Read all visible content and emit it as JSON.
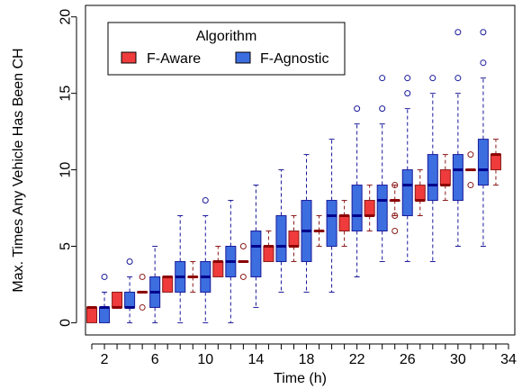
{
  "chart_data": {
    "type": "boxplot",
    "xlabel": "Time (h)",
    "ylabel": "Max. Times Any Vehicle Has Been CH",
    "xlim": [
      0.5,
      34.5
    ],
    "ylim": [
      0,
      20
    ],
    "x_ticks": [
      2,
      6,
      10,
      14,
      18,
      22,
      26,
      30,
      34
    ],
    "y_ticks": [
      0,
      5,
      10,
      15,
      20
    ],
    "legend": {
      "title": "Algorithm",
      "position": "top-left"
    },
    "series": [
      {
        "name": "F-Aware",
        "color": "#ef3b3b",
        "median_color": "#8b0000",
        "whisker_color": "#8b1a1a",
        "boxes": [
          {
            "x": 1,
            "q1": 0,
            "median": 1,
            "q3": 1,
            "lower": 0,
            "upper": 1,
            "outliers": []
          },
          {
            "x": 3,
            "q1": 1,
            "median": 1,
            "q3": 2,
            "lower": 1,
            "upper": 2,
            "outliers": []
          },
          {
            "x": 5,
            "q1": 2,
            "median": 2,
            "q3": 2,
            "lower": 2,
            "upper": 2,
            "outliers": [
              1,
              3
            ]
          },
          {
            "x": 7,
            "q1": 2,
            "median": 3,
            "q3": 3,
            "lower": 2,
            "upper": 3,
            "outliers": []
          },
          {
            "x": 9,
            "q1": 3,
            "median": 3,
            "q3": 3,
            "lower": 2,
            "upper": 4,
            "outliers": []
          },
          {
            "x": 11,
            "q1": 3,
            "median": 4,
            "q3": 4,
            "lower": 3,
            "upper": 5,
            "outliers": []
          },
          {
            "x": 13,
            "q1": 4,
            "median": 4,
            "q3": 4,
            "lower": 4,
            "upper": 4,
            "outliers": [
              3,
              5
            ]
          },
          {
            "x": 15,
            "q1": 4,
            "median": 5,
            "q3": 5,
            "lower": 4,
            "upper": 6,
            "outliers": []
          },
          {
            "x": 17,
            "q1": 5,
            "median": 5,
            "q3": 6,
            "lower": 4,
            "upper": 7,
            "outliers": []
          },
          {
            "x": 19,
            "q1": 6,
            "median": 6,
            "q3": 6,
            "lower": 5,
            "upper": 7,
            "outliers": []
          },
          {
            "x": 21,
            "q1": 6,
            "median": 7,
            "q3": 7,
            "lower": 5,
            "upper": 8,
            "outliers": []
          },
          {
            "x": 23,
            "q1": 7,
            "median": 7,
            "q3": 8,
            "lower": 6,
            "upper": 9,
            "outliers": []
          },
          {
            "x": 25,
            "q1": 8,
            "median": 8,
            "q3": 8,
            "lower": 7,
            "upper": 9,
            "outliers": [
              6,
              7,
              9
            ]
          },
          {
            "x": 27,
            "q1": 8,
            "median": 8,
            "q3": 9,
            "lower": 7,
            "upper": 10,
            "outliers": []
          },
          {
            "x": 29,
            "q1": 9,
            "median": 9,
            "q3": 10,
            "lower": 8,
            "upper": 11,
            "outliers": []
          },
          {
            "x": 31,
            "q1": 10,
            "median": 10,
            "q3": 10,
            "lower": 10,
            "upper": 10,
            "outliers": [
              9,
              11
            ]
          },
          {
            "x": 33,
            "q1": 10,
            "median": 11,
            "q3": 11,
            "lower": 9,
            "upper": 12,
            "outliers": []
          }
        ]
      },
      {
        "name": "F-Agnostic",
        "color": "#3c6ee0",
        "median_color": "#00008b",
        "whisker_color": "#1a1a9a",
        "boxes": [
          {
            "x": 2,
            "q1": 0,
            "median": 1,
            "q3": 1,
            "lower": 0,
            "upper": 2,
            "outliers": [
              3
            ]
          },
          {
            "x": 4,
            "q1": 1,
            "median": 1,
            "q3": 2,
            "lower": 0,
            "upper": 3,
            "outliers": [
              4
            ]
          },
          {
            "x": 6,
            "q1": 1,
            "median": 2,
            "q3": 3,
            "lower": 0,
            "upper": 5,
            "outliers": []
          },
          {
            "x": 8,
            "q1": 2,
            "median": 3,
            "q3": 4,
            "lower": 0,
            "upper": 7,
            "outliers": []
          },
          {
            "x": 10,
            "q1": 2,
            "median": 3,
            "q3": 4,
            "lower": 0,
            "upper": 7,
            "outliers": [
              8
            ]
          },
          {
            "x": 12,
            "q1": 3,
            "median": 4,
            "q3": 5,
            "lower": 0,
            "upper": 8,
            "outliers": []
          },
          {
            "x": 14,
            "q1": 3,
            "median": 5,
            "q3": 6,
            "lower": 1,
            "upper": 9,
            "outliers": []
          },
          {
            "x": 16,
            "q1": 4,
            "median": 5,
            "q3": 7,
            "lower": 2,
            "upper": 10,
            "outliers": []
          },
          {
            "x": 18,
            "q1": 4,
            "median": 6,
            "q3": 8,
            "lower": 2,
            "upper": 11,
            "outliers": []
          },
          {
            "x": 20,
            "q1": 5,
            "median": 7,
            "q3": 8,
            "lower": 2,
            "upper": 12,
            "outliers": []
          },
          {
            "x": 22,
            "q1": 6,
            "median": 7,
            "q3": 9,
            "lower": 3,
            "upper": 13,
            "outliers": [
              14
            ]
          },
          {
            "x": 24,
            "q1": 6,
            "median": 8,
            "q3": 9,
            "lower": 4,
            "upper": 13,
            "outliers": [
              14,
              16
            ]
          },
          {
            "x": 26,
            "q1": 7,
            "median": 9,
            "q3": 10,
            "lower": 4,
            "upper": 14,
            "outliers": [
              15,
              16
            ]
          },
          {
            "x": 28,
            "q1": 8,
            "median": 9,
            "q3": 11,
            "lower": 4,
            "upper": 15,
            "outliers": [
              16
            ]
          },
          {
            "x": 30,
            "q1": 8,
            "median": 10,
            "q3": 11,
            "lower": 5,
            "upper": 15,
            "outliers": [
              16,
              19
            ]
          },
          {
            "x": 32,
            "q1": 9,
            "median": 10,
            "q3": 12,
            "lower": 5,
            "upper": 16,
            "outliers": [
              17,
              19
            ]
          }
        ]
      }
    ]
  }
}
